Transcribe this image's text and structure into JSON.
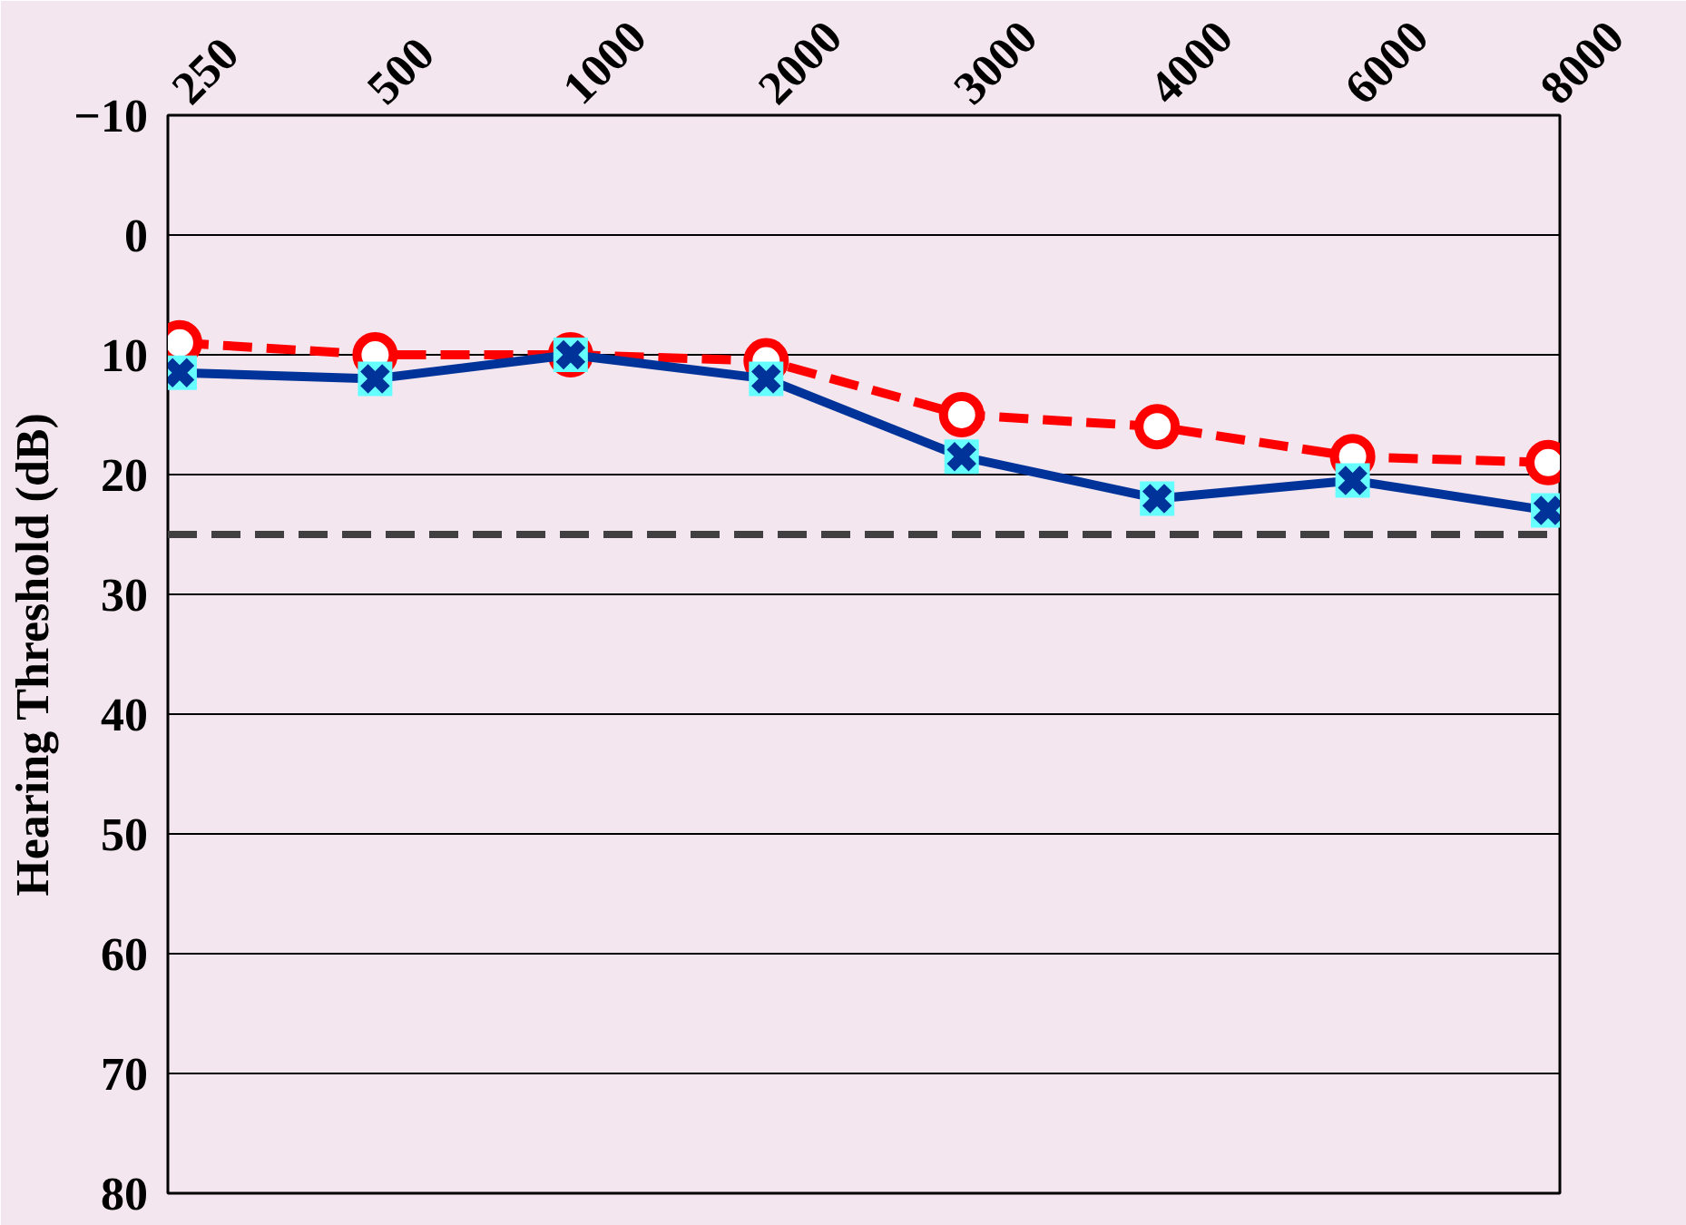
{
  "chart_data": {
    "type": "line",
    "categories": [
      "250",
      "500",
      "1000",
      "2000",
      "3000",
      "4000",
      "6000",
      "8000"
    ],
    "series": [
      {
        "color": "#ff0000",
        "marker": "circle",
        "line_style": "dashed",
        "values": [
          9,
          10,
          10,
          10.5,
          15,
          16,
          18.5,
          19
        ]
      },
      {
        "color": "#003399",
        "marker": "cross",
        "line_style": "solid",
        "values": [
          11.5,
          12,
          10,
          12,
          18.5,
          22,
          20.5,
          23
        ]
      }
    ],
    "ylabel": "Hearing Threshold (dB)",
    "ylim": [
      80,
      -10
    ],
    "yticks": [
      -10,
      0,
      10,
      20,
      30,
      40,
      50,
      60,
      70,
      80
    ],
    "grid": "y",
    "ref_lines": [
      {
        "axis": "y",
        "value": 25,
        "color": "#404040",
        "line_style": "dashed"
      }
    ]
  }
}
